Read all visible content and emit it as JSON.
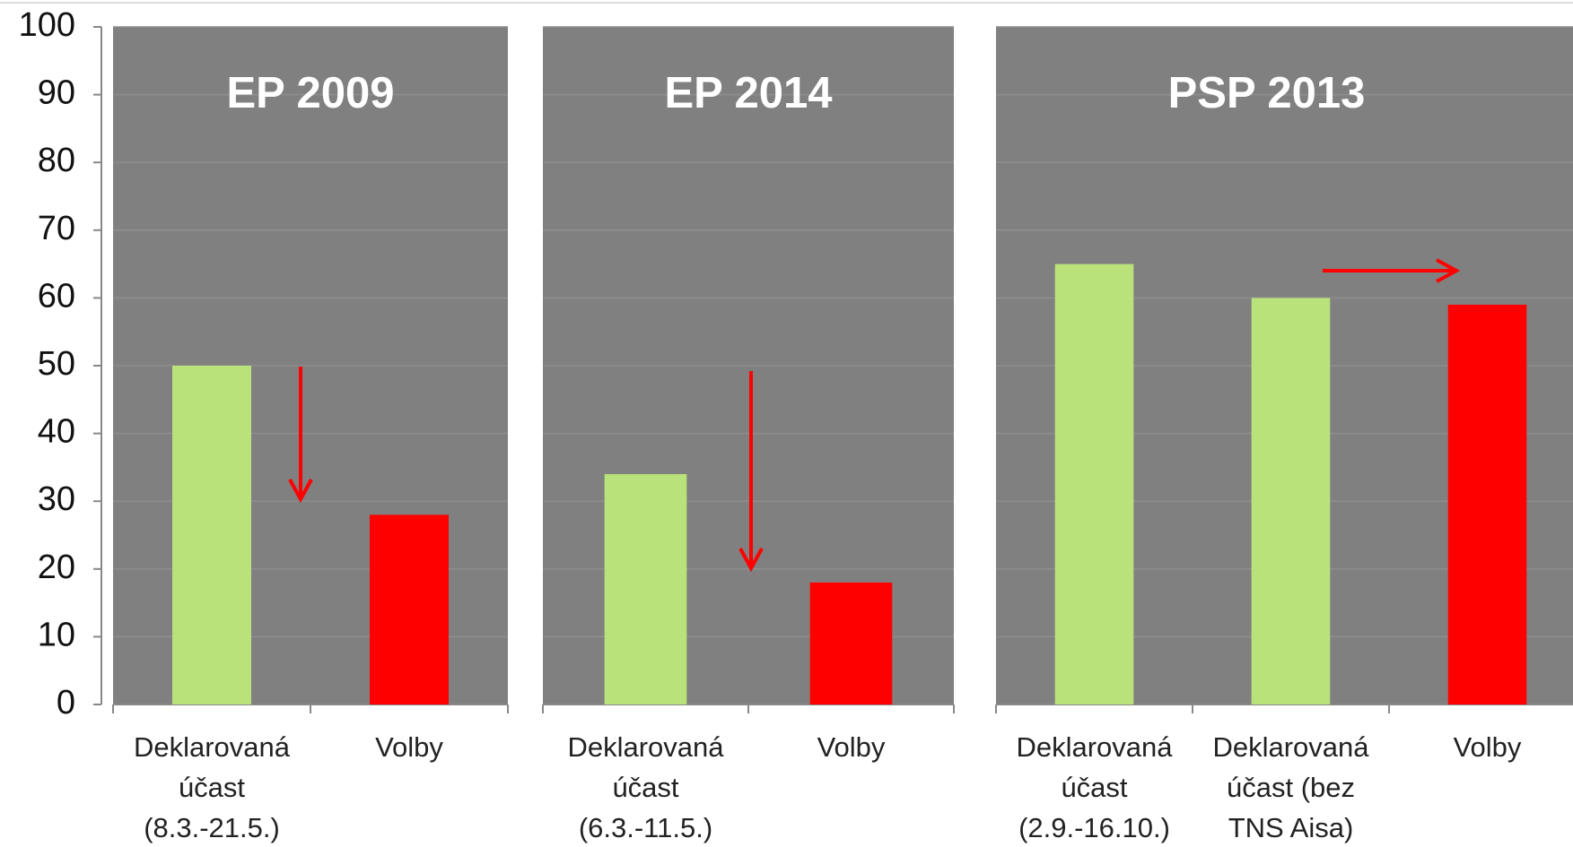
{
  "chart_data": [
    {
      "type": "bar",
      "title": "EP 2009",
      "categories": [
        "Deklarovaná účast (8.3.-21.5.)",
        "Volby"
      ],
      "values": [
        50,
        28
      ],
      "colors": [
        "#b9e27a",
        "#ff0000"
      ],
      "ylim": [
        0,
        100
      ],
      "yticks": [
        0,
        10,
        20,
        30,
        40,
        50,
        60,
        70,
        80,
        90,
        100
      ]
    },
    {
      "type": "bar",
      "title": "EP 2014",
      "categories": [
        "Deklarovaná účast (6.3.-11.5.)",
        "Volby"
      ],
      "values": [
        34,
        18
      ],
      "colors": [
        "#b9e27a",
        "#ff0000"
      ],
      "ylim": [
        0,
        100
      ]
    },
    {
      "type": "bar",
      "title": "PSP 2013",
      "categories": [
        "Deklarovaná účast (2.9.-16.10.)",
        "Deklarovaná účast (bez TNS Aisa)",
        "Volby"
      ],
      "values": [
        65,
        60,
        59
      ],
      "colors": [
        "#b9e27a",
        "#b9e27a",
        "#ff0000"
      ],
      "ylim": [
        0,
        100
      ]
    }
  ]
}
